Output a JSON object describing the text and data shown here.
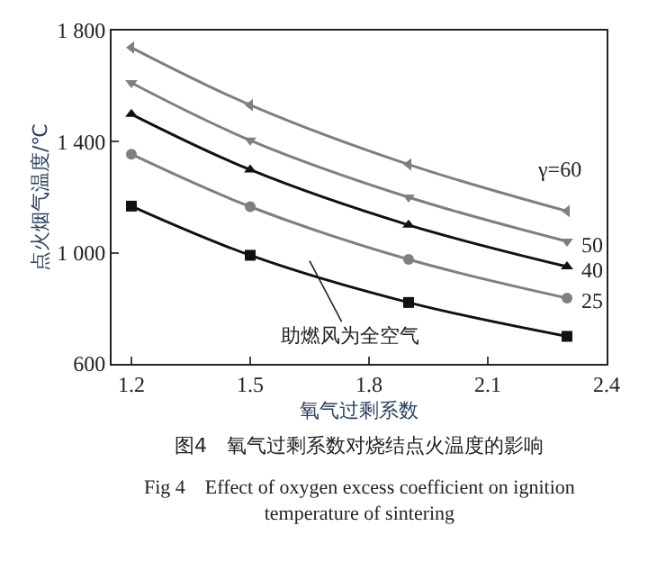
{
  "chart_data": {
    "type": "line",
    "title": "图4　氧气过剩系数对烧结点火温度的影响",
    "subtitle": "Fig 4　Effect of oxygen excess coefficient on ignition temperature of sintering",
    "xlabel": "氧气过剩系数",
    "ylabel": "点火烟气温度/℃",
    "x": [
      1.2,
      1.5,
      1.9,
      2.3
    ],
    "series": [
      {
        "name": "γ=60",
        "color": "#7f7f7f",
        "marker": "triangle-left",
        "values": [
          1739,
          1532,
          1318,
          1150
        ]
      },
      {
        "name": "50",
        "color": "#7f7f7f",
        "marker": "triangle-down",
        "values": [
          1612,
          1405,
          1200,
          1041
        ]
      },
      {
        "name": "40",
        "color": "#111111",
        "marker": "triangle",
        "values": [
          1499,
          1299,
          1100,
          950
        ]
      },
      {
        "name": "25",
        "color": "#7f7f7f",
        "marker": "circle",
        "values": [
          1355,
          1166,
          976,
          837
        ]
      },
      {
        "name": "助燃风为全空气",
        "color": "#111111",
        "marker": "square",
        "values": [
          1168,
          991,
          821,
          699
        ]
      }
    ],
    "xlim": [
      1.15,
      2.4
    ],
    "xticks": [
      1.2,
      1.5,
      1.8,
      2.1,
      2.4
    ],
    "ylim": [
      600,
      1800
    ],
    "yticks": [
      {
        "value": 600,
        "label": "600"
      },
      {
        "value": 1000,
        "label": "1 000"
      },
      {
        "value": 1400,
        "label": "1 400"
      },
      {
        "value": 1800,
        "label": "1 800"
      }
    ],
    "legend": false
  }
}
